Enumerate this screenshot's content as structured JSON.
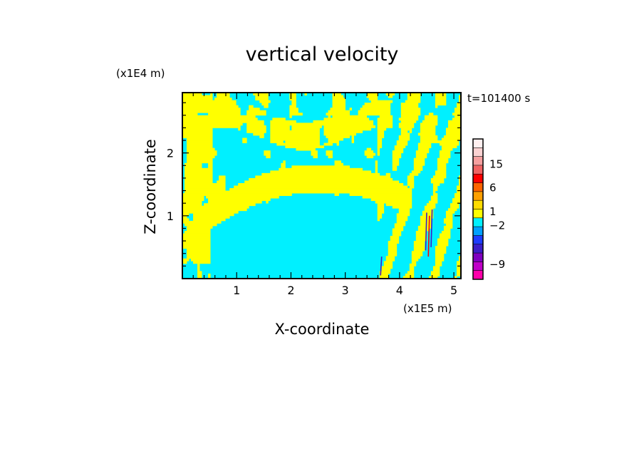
{
  "chart_data": {
    "type": "heatmap",
    "title": "vertical velocity",
    "xlabel": "X-coordinate",
    "ylabel": "Z-coordinate",
    "x_scale_label": "(x1E5 m)",
    "y_scale_label": "(x1E4 m)",
    "time_label": "t=101400 s",
    "xlim": [
      0,
      5.13
    ],
    "ylim": [
      0,
      2.96
    ],
    "x_ticks": [
      "1",
      "2",
      "3",
      "4",
      "5"
    ],
    "x_tick_values": [
      1,
      2,
      3,
      4,
      5
    ],
    "y_ticks": [
      "1",
      "2"
    ],
    "y_tick_values": [
      1,
      2
    ],
    "colorbar": {
      "labels": [
        {
          "text": "15",
          "value": 15
        },
        {
          "text": "6",
          "value": 6
        },
        {
          "text": "1",
          "value": 1
        },
        {
          "text": "−2",
          "value": -2
        },
        {
          "text": "−9",
          "value": -9
        }
      ],
      "levels": [
        {
          "color": "#ff00aa"
        },
        {
          "color": "#c000c8"
        },
        {
          "color": "#8000c0"
        },
        {
          "color": "#3c1ec8"
        },
        {
          "color": "#1e3cff"
        },
        {
          "color": "#00a0ff"
        },
        {
          "color": "#00f0ff"
        },
        {
          "color": "#ffff00"
        },
        {
          "color": "#ffdc00"
        },
        {
          "color": "#ffa000"
        },
        {
          "color": "#ff6400"
        },
        {
          "color": "#ff0000"
        },
        {
          "color": "#f06464"
        },
        {
          "color": "#f5a0a0"
        },
        {
          "color": "#fad2d2"
        },
        {
          "color": "#fff0f0"
        }
      ]
    },
    "field_colors": {
      "negative": "#00f0ff",
      "positive": "#ffff00",
      "strong_negative": "#3c1ec8",
      "strong_positive": "#ff0000"
    }
  }
}
